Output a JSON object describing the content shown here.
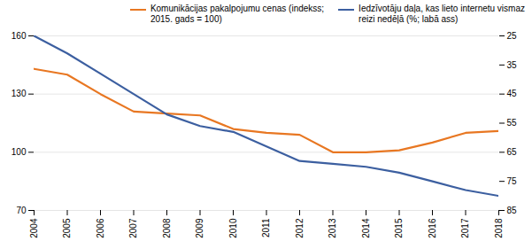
{
  "chart_data": {
    "type": "line",
    "x": [
      2004,
      2005,
      2006,
      2007,
      2008,
      2009,
      2010,
      2011,
      2012,
      2013,
      2014,
      2015,
      2016,
      2017,
      2018
    ],
    "xlim": [
      2004,
      2018
    ],
    "xticks": [
      2004,
      2005,
      2006,
      2007,
      2008,
      2009,
      2010,
      2011,
      2012,
      2013,
      2014,
      2015,
      2016,
      2017,
      2018
    ],
    "ylim": [
      70,
      160
    ],
    "yticks": [
      70,
      100,
      130,
      160
    ],
    "y2lim": [
      85,
      25
    ],
    "y2ticks": [
      25,
      35,
      45,
      55,
      65,
      75,
      85
    ],
    "grid": true,
    "legend": "upper right",
    "series": [
      {
        "name": "Komunikācijas pakalpojumu cenas (indekss;\n2015. gads = 100)",
        "color": "#E87722",
        "values": [
          143,
          140,
          130,
          121,
          120,
          119,
          112,
          110,
          109,
          100,
          100,
          101,
          105,
          110,
          111
        ]
      },
      {
        "name": "Iedzīvotāju daļa, kas lieto internetu vismaz\nreizi nedēļā (%; labā ass)",
        "color": "#3C5FA0",
        "axis": "y2",
        "values": [
          25,
          31,
          38,
          45,
          52,
          56,
          58,
          63,
          68,
          69,
          70,
          72,
          75,
          78,
          80
        ]
      }
    ]
  }
}
